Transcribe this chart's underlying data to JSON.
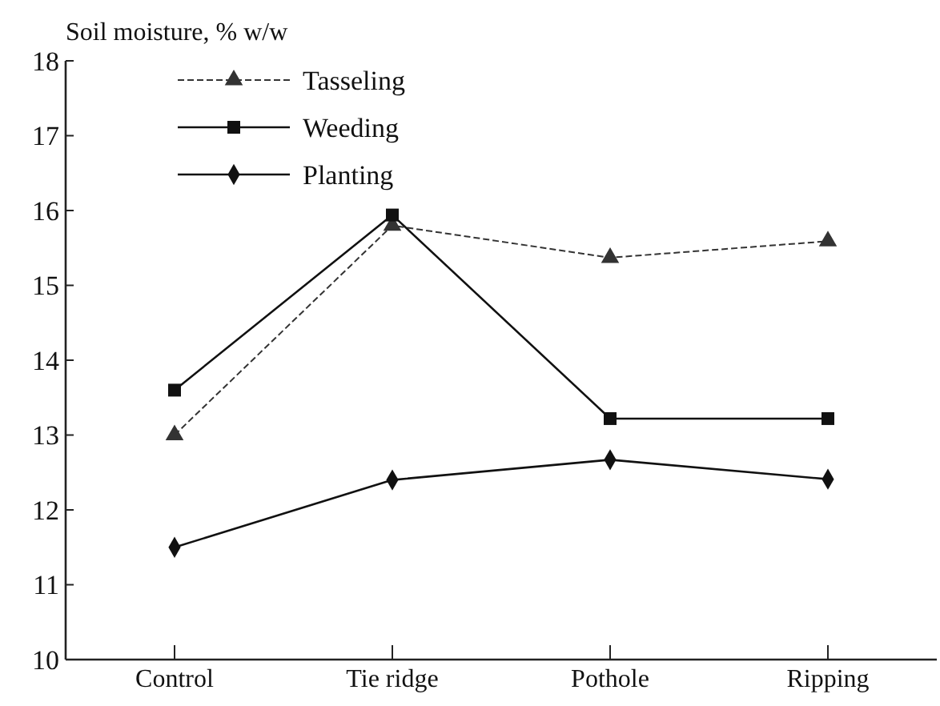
{
  "chart_data": {
    "type": "line",
    "ylabel": "Soil moisture, % w/w",
    "categories": [
      "Control",
      "Tie ridge",
      "Pothole",
      "Ripping"
    ],
    "series": [
      {
        "name": "Tasseling",
        "color": "#333333",
        "marker": "triangle",
        "line_style": "dashed",
        "values": [
          13.0,
          15.8,
          15.37,
          15.59
        ]
      },
      {
        "name": "Weeding",
        "color": "#111111",
        "marker": "square",
        "line_style": "solid",
        "values": [
          13.6,
          15.94,
          13.22,
          13.22
        ]
      },
      {
        "name": "Planting",
        "color": "#111111",
        "marker": "diamond",
        "line_style": "solid",
        "values": [
          11.5,
          12.4,
          12.67,
          12.41
        ]
      }
    ],
    "ylim": [
      10,
      18
    ],
    "yticks": [
      10,
      11,
      12,
      13,
      14,
      15,
      16,
      17,
      18
    ],
    "grid": false,
    "legend": "top left"
  }
}
